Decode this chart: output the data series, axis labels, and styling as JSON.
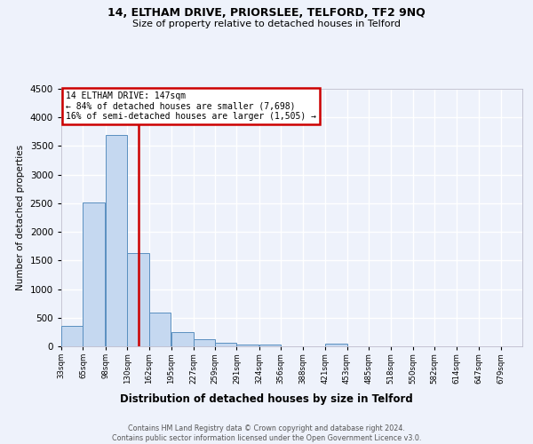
{
  "title": "14, ELTHAM DRIVE, PRIORSLEE, TELFORD, TF2 9NQ",
  "subtitle": "Size of property relative to detached houses in Telford",
  "xlabel": "Distribution of detached houses by size in Telford",
  "ylabel": "Number of detached properties",
  "bg_color": "#eef2fb",
  "bar_color": "#c5d8f0",
  "bar_edge_color": "#5a8fc0",
  "grid_color": "#ffffff",
  "vline_color": "#cc0000",
  "vline_x": 147,
  "ann_line1": "14 ELTHAM DRIVE: 147sqm",
  "ann_line2": "← 84% of detached houses are smaller (7,698)",
  "ann_line3": "16% of semi-detached houses are larger (1,505) →",
  "ann_face": "#ffffff",
  "ann_edge": "#cc0000",
  "footer1": "Contains HM Land Registry data © Crown copyright and database right 2024.",
  "footer2": "Contains public sector information licensed under the Open Government Licence v3.0.",
  "bins": [
    33,
    65,
    98,
    130,
    162,
    195,
    227,
    259,
    291,
    324,
    356,
    388,
    421,
    453,
    485,
    518,
    550,
    582,
    614,
    647,
    679
  ],
  "counts": [
    355,
    2510,
    3700,
    1630,
    590,
    250,
    120,
    60,
    35,
    30,
    0,
    0,
    50,
    0,
    0,
    0,
    0,
    0,
    0,
    0
  ],
  "ylim": [
    0,
    4500
  ],
  "yticks": [
    0,
    500,
    1000,
    1500,
    2000,
    2500,
    3000,
    3500,
    4000,
    4500
  ]
}
